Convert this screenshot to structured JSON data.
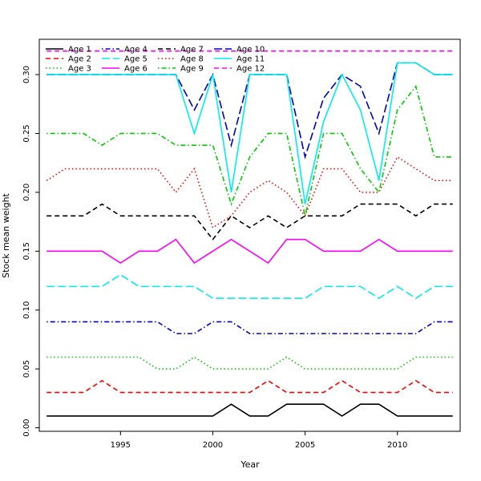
{
  "chart_data": {
    "type": "line",
    "title": "",
    "xlabel": "Year",
    "ylabel": "Stock mean weight",
    "xlim": [
      1990.6,
      2013.4
    ],
    "ylim": [
      -0.003,
      0.33
    ],
    "xticks": [
      1995,
      2000,
      2005,
      2010
    ],
    "yticks": [
      0.0,
      0.05,
      0.1,
      0.15,
      0.2,
      0.25,
      0.3
    ],
    "ytick_labels": [
      "0.00",
      "0.05",
      "0.10",
      "0.15",
      "0.20",
      "0.25",
      "0.30"
    ],
    "legend_position": "top-left",
    "grid": false,
    "x": [
      1991,
      1992,
      1993,
      1994,
      1995,
      1996,
      1997,
      1998,
      1999,
      2000,
      2001,
      2002,
      2003,
      2004,
      2005,
      2006,
      2007,
      2008,
      2009,
      2010,
      2011,
      2012,
      2013
    ],
    "series": [
      {
        "name": "Age 1",
        "color": "#000000",
        "dash": "solid",
        "values": [
          0.01,
          0.01,
          0.01,
          0.01,
          0.01,
          0.01,
          0.01,
          0.01,
          0.01,
          0.01,
          0.02,
          0.01,
          0.01,
          0.02,
          0.02,
          0.02,
          0.01,
          0.02,
          0.02,
          0.01,
          0.01,
          0.01,
          0.01
        ]
      },
      {
        "name": "Age 2",
        "color": "#ff0000",
        "dash": "dashed",
        "values": [
          0.03,
          0.03,
          0.03,
          0.04,
          0.03,
          0.03,
          0.03,
          0.03,
          0.03,
          0.03,
          0.03,
          0.03,
          0.04,
          0.03,
          0.03,
          0.03,
          0.04,
          0.03,
          0.03,
          0.03,
          0.04,
          0.03,
          0.03
        ]
      },
      {
        "name": "Age 3",
        "color": "#00cd00",
        "dash": "dotted",
        "values": [
          0.06,
          0.06,
          0.06,
          0.06,
          0.06,
          0.06,
          0.05,
          0.05,
          0.06,
          0.05,
          0.05,
          0.05,
          0.05,
          0.06,
          0.05,
          0.05,
          0.05,
          0.05,
          0.05,
          0.05,
          0.06,
          0.06,
          0.06
        ]
      },
      {
        "name": "Age 4",
        "color": "#0000cd",
        "dash": "dotdash",
        "values": [
          0.09,
          0.09,
          0.09,
          0.09,
          0.09,
          0.09,
          0.09,
          0.08,
          0.08,
          0.09,
          0.09,
          0.08,
          0.08,
          0.08,
          0.08,
          0.08,
          0.08,
          0.08,
          0.08,
          0.08,
          0.08,
          0.09,
          0.09
        ]
      },
      {
        "name": "Age 5",
        "color": "#00eeee",
        "dash": "longdash",
        "values": [
          0.12,
          0.12,
          0.12,
          0.12,
          0.13,
          0.12,
          0.12,
          0.12,
          0.12,
          0.11,
          0.11,
          0.11,
          0.11,
          0.11,
          0.11,
          0.12,
          0.12,
          0.12,
          0.11,
          0.12,
          0.11,
          0.12,
          0.12
        ]
      },
      {
        "name": "Age 6",
        "color": "#ff00ff",
        "dash": "solid",
        "values": [
          0.15,
          0.15,
          0.15,
          0.15,
          0.14,
          0.15,
          0.15,
          0.16,
          0.14,
          0.15,
          0.16,
          0.15,
          0.14,
          0.16,
          0.16,
          0.15,
          0.15,
          0.15,
          0.16,
          0.15,
          0.15,
          0.15,
          0.15
        ]
      },
      {
        "name": "Age 7",
        "color": "#000000",
        "dash": "dashed",
        "values": [
          0.18,
          0.18,
          0.18,
          0.19,
          0.18,
          0.18,
          0.18,
          0.18,
          0.18,
          0.16,
          0.18,
          0.17,
          0.18,
          0.17,
          0.18,
          0.18,
          0.18,
          0.19,
          0.19,
          0.19,
          0.18,
          0.19,
          0.19
        ]
      },
      {
        "name": "Age 8",
        "color": "#ff0000",
        "dash": "dotted",
        "values": [
          0.21,
          0.22,
          0.22,
          0.22,
          0.22,
          0.22,
          0.22,
          0.2,
          0.22,
          0.17,
          0.18,
          0.2,
          0.21,
          0.2,
          0.18,
          0.22,
          0.22,
          0.2,
          0.2,
          0.23,
          0.22,
          0.21,
          0.21
        ]
      },
      {
        "name": "Age 9",
        "color": "#00cd00",
        "dash": "dotdash",
        "values": [
          0.25,
          0.25,
          0.25,
          0.24,
          0.25,
          0.25,
          0.25,
          0.24,
          0.24,
          0.24,
          0.19,
          0.23,
          0.25,
          0.25,
          0.18,
          0.25,
          0.25,
          0.22,
          0.2,
          0.27,
          0.29,
          0.23,
          0.23
        ]
      },
      {
        "name": "Age 10",
        "color": "#0000cd",
        "dash": "longdash",
        "values": [
          0.3,
          0.3,
          0.3,
          0.3,
          0.3,
          0.3,
          0.3,
          0.3,
          0.27,
          0.3,
          0.24,
          0.3,
          0.3,
          0.3,
          0.23,
          0.28,
          0.3,
          0.29,
          0.25,
          0.31,
          0.31,
          0.3,
          0.3
        ]
      },
      {
        "name": "Age 11",
        "color": "#00eeee",
        "dash": "solid",
        "values": [
          0.3,
          0.3,
          0.3,
          0.3,
          0.3,
          0.3,
          0.3,
          0.3,
          0.25,
          0.3,
          0.2,
          0.3,
          0.3,
          0.3,
          0.19,
          0.26,
          0.3,
          0.27,
          0.21,
          0.31,
          0.31,
          0.3,
          0.3
        ]
      },
      {
        "name": "Age 12",
        "color": "#ff00ff",
        "dash": "dashed",
        "values": [
          0.32,
          0.32,
          0.32,
          0.32,
          0.32,
          0.32,
          0.32,
          0.32,
          0.32,
          0.32,
          0.32,
          0.32,
          0.32,
          0.32,
          0.32,
          0.32,
          0.32,
          0.32,
          0.32,
          0.32,
          0.32,
          0.32,
          0.32
        ]
      }
    ]
  }
}
